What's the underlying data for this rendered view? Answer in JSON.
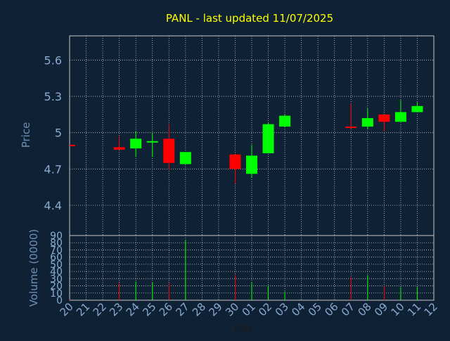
{
  "title": "PANL - last updated 11/07/2025",
  "colors": {
    "background": "#0f2235",
    "title": "#ffff00",
    "axis_label": "#6e8fb5",
    "tick_label": "#8aaad0",
    "grid": "#c8c8c8",
    "up": "#00ff00",
    "down": "#ff0000"
  },
  "chart_data": [
    {
      "type": "candlestick",
      "ylabel": "Price",
      "ylim": [
        4.15,
        5.8
      ],
      "yticks": [
        4.4,
        4.7,
        5,
        5.3,
        5.6
      ],
      "ytick_labels": [
        "4.4",
        "4.7",
        "5",
        "5.3",
        "5.6"
      ],
      "grid": true,
      "candles": [
        {
          "day": "20",
          "open": 4.9,
          "high": 4.9,
          "low": 4.9,
          "close": 4.89
        },
        {
          "day": "23",
          "open": 4.88,
          "high": 4.97,
          "low": 4.86,
          "close": 4.86
        },
        {
          "day": "24",
          "open": 4.87,
          "high": 5.01,
          "low": 4.8,
          "close": 4.95
        },
        {
          "day": "25",
          "open": 4.92,
          "high": 5.0,
          "low": 4.8,
          "close": 4.93
        },
        {
          "day": "26",
          "open": 4.95,
          "high": 5.07,
          "low": 4.69,
          "close": 4.75
        },
        {
          "day": "27",
          "open": 4.74,
          "high": 4.84,
          "low": 4.74,
          "close": 4.84
        },
        {
          "day": "30",
          "open": 4.82,
          "high": 4.82,
          "low": 4.58,
          "close": 4.7
        },
        {
          "day": "01",
          "open": 4.66,
          "high": 4.9,
          "low": 4.63,
          "close": 4.81
        },
        {
          "day": "02",
          "open": 4.83,
          "high": 5.08,
          "low": 4.83,
          "close": 5.07
        },
        {
          "day": "03",
          "open": 5.05,
          "high": 5.15,
          "low": 5.05,
          "close": 5.14
        },
        {
          "day": "07",
          "open": 5.05,
          "high": 5.24,
          "low": 5.03,
          "close": 5.04
        },
        {
          "day": "08",
          "open": 5.05,
          "high": 5.2,
          "low": 5.03,
          "close": 5.12
        },
        {
          "day": "09",
          "open": 5.15,
          "high": 5.15,
          "low": 5.01,
          "close": 5.09
        },
        {
          "day": "10",
          "open": 5.09,
          "high": 5.27,
          "low": 5.09,
          "close": 5.17
        },
        {
          "day": "11",
          "open": 5.17,
          "high": 5.25,
          "low": 5.17,
          "close": 5.22
        }
      ]
    },
    {
      "type": "bar",
      "ylabel": "Volume (0000)",
      "xlabel": "Day",
      "ylim": [
        0,
        90
      ],
      "yticks": [
        0,
        10,
        20,
        30,
        40,
        50,
        60,
        70,
        80,
        90
      ],
      "ytick_labels": [
        "0",
        "10",
        "20",
        "30",
        "40",
        "50",
        "60",
        "70",
        "80",
        "90"
      ],
      "grid": true,
      "bars": [
        {
          "day": "20",
          "value": 1,
          "direction": "down"
        },
        {
          "day": "23",
          "value": 24,
          "direction": "down"
        },
        {
          "day": "24",
          "value": 26,
          "direction": "up"
        },
        {
          "day": "25",
          "value": 25,
          "direction": "up"
        },
        {
          "day": "26",
          "value": 24,
          "direction": "down"
        },
        {
          "day": "27",
          "value": 84,
          "direction": "up"
        },
        {
          "day": "30",
          "value": 35,
          "direction": "down"
        },
        {
          "day": "01",
          "value": 25,
          "direction": "up"
        },
        {
          "day": "02",
          "value": 21,
          "direction": "up"
        },
        {
          "day": "03",
          "value": 12,
          "direction": "up"
        },
        {
          "day": "07",
          "value": 32,
          "direction": "down"
        },
        {
          "day": "08",
          "value": 35,
          "direction": "up"
        },
        {
          "day": "09",
          "value": 20,
          "direction": "down"
        },
        {
          "day": "10",
          "value": 18,
          "direction": "up"
        },
        {
          "day": "11",
          "value": 18,
          "direction": "up"
        }
      ]
    }
  ],
  "x_categories": [
    "20",
    "21",
    "22",
    "23",
    "24",
    "25",
    "26",
    "27",
    "28",
    "29",
    "30",
    "01",
    "02",
    "03",
    "04",
    "05",
    "06",
    "07",
    "08",
    "09",
    "10",
    "11",
    "12"
  ]
}
